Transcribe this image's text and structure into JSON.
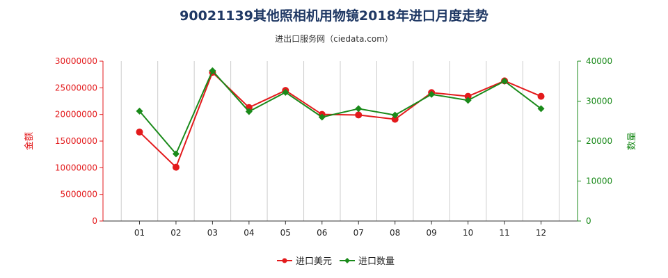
{
  "header": {
    "title": "90021139其他照相机用物镜2018年进口月度走势",
    "subtitle": "进出口服务网（ciedata.com）"
  },
  "colors": {
    "left_series": "#e31a1c",
    "right_series": "#1a8a1a",
    "grid": "#cccccc",
    "axis": "#333333"
  },
  "chart_data": {
    "type": "line",
    "title": "90021139其他照相机用物镜2018年进口月度走势",
    "subtitle": "进出口服务网（ciedata.com）",
    "categories": [
      "01",
      "02",
      "03",
      "04",
      "05",
      "06",
      "07",
      "08",
      "09",
      "10",
      "11",
      "12"
    ],
    "y_left": {
      "label": "金额",
      "lim": [
        0,
        30000000
      ],
      "ticks": [
        0,
        5000000,
        10000000,
        15000000,
        20000000,
        25000000,
        30000000
      ],
      "tick_labels": [
        "0",
        "5000000",
        "10000000",
        "15000000",
        "20000000",
        "25000000",
        "30000000"
      ]
    },
    "y_right": {
      "label": "数量",
      "lim": [
        0,
        40000
      ],
      "ticks": [
        0,
        10000,
        20000,
        30000,
        40000
      ],
      "tick_labels": [
        "0",
        "10000",
        "20000",
        "30000",
        "40000"
      ]
    },
    "series": [
      {
        "name": "进口美元",
        "axis": "left",
        "color": "#e31a1c",
        "marker": "circle",
        "values": [
          16700000,
          10100000,
          27900000,
          21300000,
          24500000,
          20000000,
          19900000,
          19100000,
          24100000,
          23400000,
          26300000,
          23400000
        ]
      },
      {
        "name": "进口数量",
        "axis": "right",
        "color": "#1a8a1a",
        "marker": "diamond",
        "values": [
          27500,
          16800,
          37600,
          27400,
          32200,
          26000,
          28100,
          26500,
          31700,
          30200,
          35000,
          28100
        ]
      }
    ],
    "grid": {
      "vertical": true,
      "horizontal": false
    },
    "legend": {
      "position": "bottom-center",
      "entries": [
        "进口美元",
        "进口数量"
      ]
    }
  }
}
